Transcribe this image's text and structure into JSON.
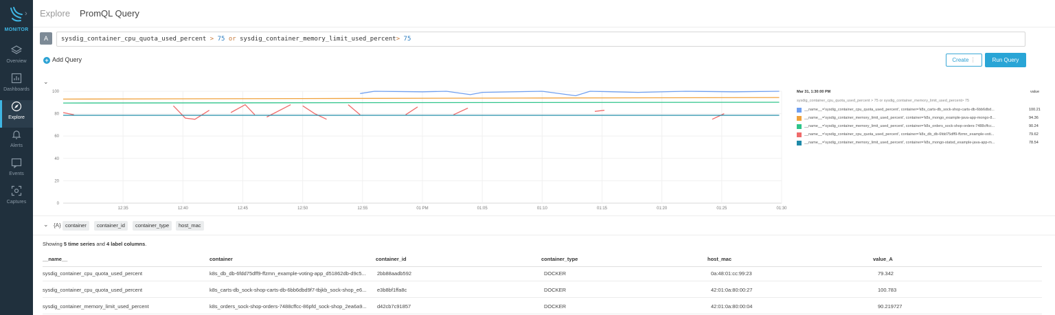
{
  "sidebar": {
    "brand": "MONITOR",
    "items": [
      {
        "label": "Overview",
        "icon": "layers-icon"
      },
      {
        "label": "Dashboards",
        "icon": "dashboard-icon"
      },
      {
        "label": "Explore",
        "icon": "compass-icon",
        "active": true
      },
      {
        "label": "Alerts",
        "icon": "bell-icon"
      },
      {
        "label": "Events",
        "icon": "events-icon"
      },
      {
        "label": "Captures",
        "icon": "capture-icon"
      }
    ]
  },
  "header": {
    "breadcrumb": "Explore",
    "title": "PromQL Query"
  },
  "query": {
    "badge": "A",
    "metric1": "sysdig_container_cpu_quota_used_percent",
    "op1": ">",
    "num1": "75",
    "or": "or",
    "metric2": "sysdig_container_memory_limit_used_percent",
    "op2": ">",
    "num2": "75"
  },
  "actions": {
    "add_query": "Add Query",
    "create": "Create",
    "create_more": "⋮",
    "run": "Run Query"
  },
  "chart_data": {
    "type": "line",
    "x_ticks": [
      "12:35",
      "12:40",
      "12:45",
      "12:50",
      "12:55",
      "01 PM",
      "01:05",
      "01:10",
      "01:15",
      "01:20",
      "01:25",
      "01:30"
    ],
    "y_ticks": [
      "0",
      "20",
      "40",
      "60",
      "80",
      "100"
    ],
    "ylim": [
      0,
      100
    ],
    "grid": true,
    "series": [
      {
        "color": "#6f9ff0",
        "points": [
          [
            12.4,
            98
          ],
          [
            13,
            100
          ],
          [
            15,
            99.5
          ],
          [
            16,
            100
          ],
          [
            17,
            97
          ],
          [
            17.5,
            99
          ],
          [
            20,
            100
          ],
          [
            21.4,
            96
          ],
          [
            22,
            100
          ],
          [
            24,
            99
          ],
          [
            26,
            100
          ],
          [
            28,
            99.5
          ],
          [
            29.9,
            100
          ]
        ]
      },
      {
        "color": "#f0a23c",
        "points": [
          [
            0,
            93
          ],
          [
            10,
            93.5
          ],
          [
            20,
            94
          ],
          [
            29.9,
            94.4
          ]
        ]
      },
      {
        "color": "#2ec48a",
        "points": [
          [
            0,
            89.5
          ],
          [
            29.9,
            90.2
          ]
        ]
      },
      {
        "color": "#ef6b6b",
        "segments": [
          [
            [
              0,
              81
            ],
            [
              0.45,
              79
            ]
          ],
          [
            [
              4.6,
              87
            ],
            [
              5.1,
              76
            ],
            [
              5.5,
              75
            ],
            [
              6.1,
              83
            ]
          ],
          [
            [
              7,
              81
            ],
            [
              7.6,
              88
            ],
            [
              8,
              79
            ]
          ],
          [
            [
              8.5,
              77
            ],
            [
              9.5,
              88
            ]
          ],
          [
            [
              10,
              87
            ],
            [
              10.5,
              80
            ],
            [
              11,
              75
            ]
          ],
          [
            [
              11.9,
              88
            ],
            [
              12.4,
              79
            ]
          ],
          [
            [
              14.3,
              79
            ],
            [
              14.8,
              86
            ]
          ],
          [
            [
              16.3,
              79
            ],
            [
              16.9,
              85
            ]
          ],
          [
            [
              22.2,
              82
            ],
            [
              22.6,
              83
            ]
          ],
          [
            [
              27.1,
              75
            ],
            [
              27.6,
              80
            ]
          ]
        ]
      },
      {
        "color": "#1f8aa8",
        "points": [
          [
            0,
            78.5
          ],
          [
            29.9,
            78.5
          ]
        ]
      }
    ]
  },
  "legend": {
    "time": "Mar 31, 1:30:00 PM",
    "value_header": "value",
    "query": "sysdig_container_cpu_quota_used_percent > 75 or sysdig_container_memory_limit_used_percent> 75",
    "rows": [
      {
        "color": "#6f9ff0",
        "name": "__name__='sysdig_container_cpu_quota_used_percent', container='k8s_carts-db_sock-shop-carts-db-6bb6dbd...",
        "value": "100.21"
      },
      {
        "color": "#f0a23c",
        "name": "__name__='sysdig_container_memory_limit_used_percent', container='k8s_mongo_example-java-app-mongo-8...",
        "value": "94.36"
      },
      {
        "color": "#2ec48a",
        "name": "__name__='sysdig_container_memory_limit_used_percent', container='k8s_orders_sock-shop-orders-7488cffcc...",
        "value": "90.24"
      },
      {
        "color": "#ef6b6b",
        "name": "__name__='sysdig_container_cpu_quota_used_percent', container='k8s_db_db-6fdd75dff9-ffzmn_example-voti...",
        "value": "79.62"
      },
      {
        "color": "#1f8aa8",
        "name": "__name__='sysdig_container_memory_limit_used_percent', container='k8s_mongo-statsd_example-java-app-m...",
        "value": "78.54"
      }
    ]
  },
  "labels": {
    "bracket": "{A}",
    "tags": [
      "container",
      "container_id",
      "container_type",
      "host_mac"
    ]
  },
  "summary": {
    "prefix": "Showing ",
    "count": "5 time series",
    "mid": " and ",
    "cols": "4 label columns",
    "suffix": "."
  },
  "table": {
    "columns": [
      "__name__",
      "container",
      "container_id",
      "container_type",
      "host_mac",
      "value_A"
    ],
    "rows": [
      [
        "sysdig_container_cpu_quota_used_percent",
        "k8s_db_db-6fdd75dff9-ffzmn_example-voting-app_d51862db-d9c5...",
        "2bb88aadb592",
        "DOCKER",
        "0a:48:01:cc:99:23",
        "79.342"
      ],
      [
        "sysdig_container_cpu_quota_used_percent",
        "k8s_carts-db_sock-shop-carts-db-6bb6dbd9f7-tbjkb_sock-shop_e6...",
        "e3b8bf1ffa8c",
        "DOCKER",
        "42:01:0a:80:00:27",
        "100.783"
      ],
      [
        "sysdig_container_memory_limit_used_percent",
        "k8s_orders_sock-shop-orders-7488cffcc-86pfd_sock-shop_2ea6a9...",
        "d42cb7c91857",
        "DOCKER",
        "42:01:0a:80:00:04",
        "90.219727"
      ]
    ]
  }
}
